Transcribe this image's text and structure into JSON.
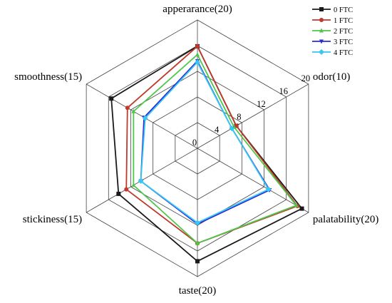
{
  "chart_data": {
    "type": "radar",
    "title": "",
    "axes": [
      "apperarance(20)",
      "odor(10)",
      "palatability(20)",
      "taste(20)",
      "stickiness(15)",
      "smoothness(15)"
    ],
    "radial_ticks": [
      "0",
      "4",
      "8",
      "12",
      "16",
      "20"
    ],
    "rmax": 20,
    "grid": true,
    "legend_position": "top-right",
    "series": [
      {
        "name": "0 FTC",
        "color": "#1a1a1a",
        "marker": "square",
        "values": [
          15.9,
          7.0,
          18.8,
          17.6,
          14.2,
          15.5
        ]
      },
      {
        "name": "1 FTC",
        "color": "#c0392b",
        "marker": "circle",
        "values": [
          15.9,
          7.0,
          18.0,
          14.8,
          12.8,
          12.6
        ]
      },
      {
        "name": "2 FTC",
        "color": "#4fc74a",
        "marker": "triangle-up",
        "values": [
          14.6,
          6.6,
          17.8,
          14.8,
          11.5,
          11.5
        ]
      },
      {
        "name": "3 FTC",
        "color": "#2b2bd6",
        "marker": "triangle-down",
        "values": [
          13.6,
          6.2,
          13.0,
          11.8,
          10.2,
          9.6
        ]
      },
      {
        "name": "4 FTC",
        "color": "#39c6f0",
        "marker": "diamond",
        "values": [
          13.4,
          6.2,
          12.8,
          11.6,
          10.2,
          9.4
        ]
      }
    ]
  }
}
